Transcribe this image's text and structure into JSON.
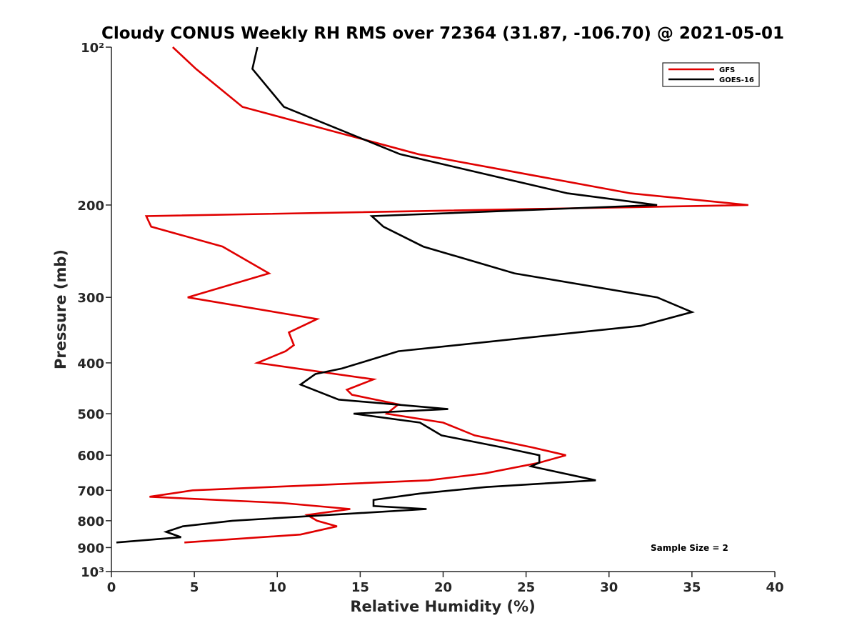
{
  "chart_data": {
    "type": "line",
    "title": "Cloudy CONUS Weekly RH RMS over 72364 (31.87, -106.70) @ 2021-05-01",
    "xlabel": "Relative Humidity (%)",
    "ylabel": "Pressure (mb)",
    "xlim": [
      0,
      40
    ],
    "ylim": [
      100,
      1000
    ],
    "y_scale": "log",
    "y_reversed": true,
    "grid": false,
    "legend_position": "top-right",
    "x_ticks": [
      0,
      5,
      10,
      15,
      20,
      25,
      30,
      35,
      40
    ],
    "x_tick_labels": [
      "0",
      "5",
      "10",
      "15",
      "20",
      "25",
      "30",
      "35",
      "40"
    ],
    "y_ticks": [
      100,
      200,
      300,
      400,
      500,
      600,
      700,
      800,
      900,
      1000
    ],
    "y_tick_labels": [
      "10²",
      "200",
      "300",
      "400",
      "500",
      "600",
      "700",
      "800",
      "900",
      "10³"
    ],
    "annotation": "Sample Size = 2",
    "series": [
      {
        "name": "GFS",
        "color": "#e00000",
        "x": [
          3.7,
          5.1,
          7.9,
          18.5,
          31.3,
          38.4,
          2.1,
          2.4,
          6.7,
          9.5,
          4.6,
          12.4,
          10.7,
          11.0,
          10.5,
          8.8,
          15.8,
          14.2,
          14.5,
          17.3,
          16.6,
          20.0,
          21.9,
          25.4,
          27.4,
          25.8,
          22.5,
          19.1,
          4.9,
          2.3,
          10.3,
          14.4,
          11.8,
          12.4,
          13.6,
          11.4,
          4.4
        ],
        "y": [
          100,
          110,
          130,
          160,
          190,
          200,
          210,
          220,
          240,
          270,
          300,
          330,
          350,
          370,
          380,
          400,
          430,
          450,
          460,
          480,
          500,
          520,
          550,
          580,
          600,
          620,
          650,
          670,
          700,
          720,
          740,
          760,
          780,
          800,
          820,
          850,
          880
        ]
      },
      {
        "name": "GOES-16",
        "color": "#000000",
        "x": [
          8.8,
          8.5,
          10.4,
          17.4,
          27.5,
          32.9,
          15.7,
          16.4,
          18.8,
          24.3,
          32.9,
          35.0,
          31.9,
          17.3,
          13.9,
          12.3,
          11.4,
          13.7,
          20.3,
          14.6,
          18.6,
          19.9,
          23.6,
          25.8,
          25.8,
          25.3,
          29.2,
          22.6,
          18.6,
          15.8,
          15.8,
          19.0,
          7.3,
          4.3,
          3.3,
          4.2,
          0.3
        ],
        "y": [
          100,
          110,
          130,
          160,
          190,
          200,
          210,
          220,
          240,
          270,
          300,
          320,
          340,
          380,
          410,
          420,
          440,
          470,
          490,
          500,
          520,
          550,
          580,
          600,
          620,
          630,
          670,
          690,
          710,
          730,
          750,
          760,
          800,
          820,
          840,
          860,
          880
        ]
      }
    ]
  }
}
